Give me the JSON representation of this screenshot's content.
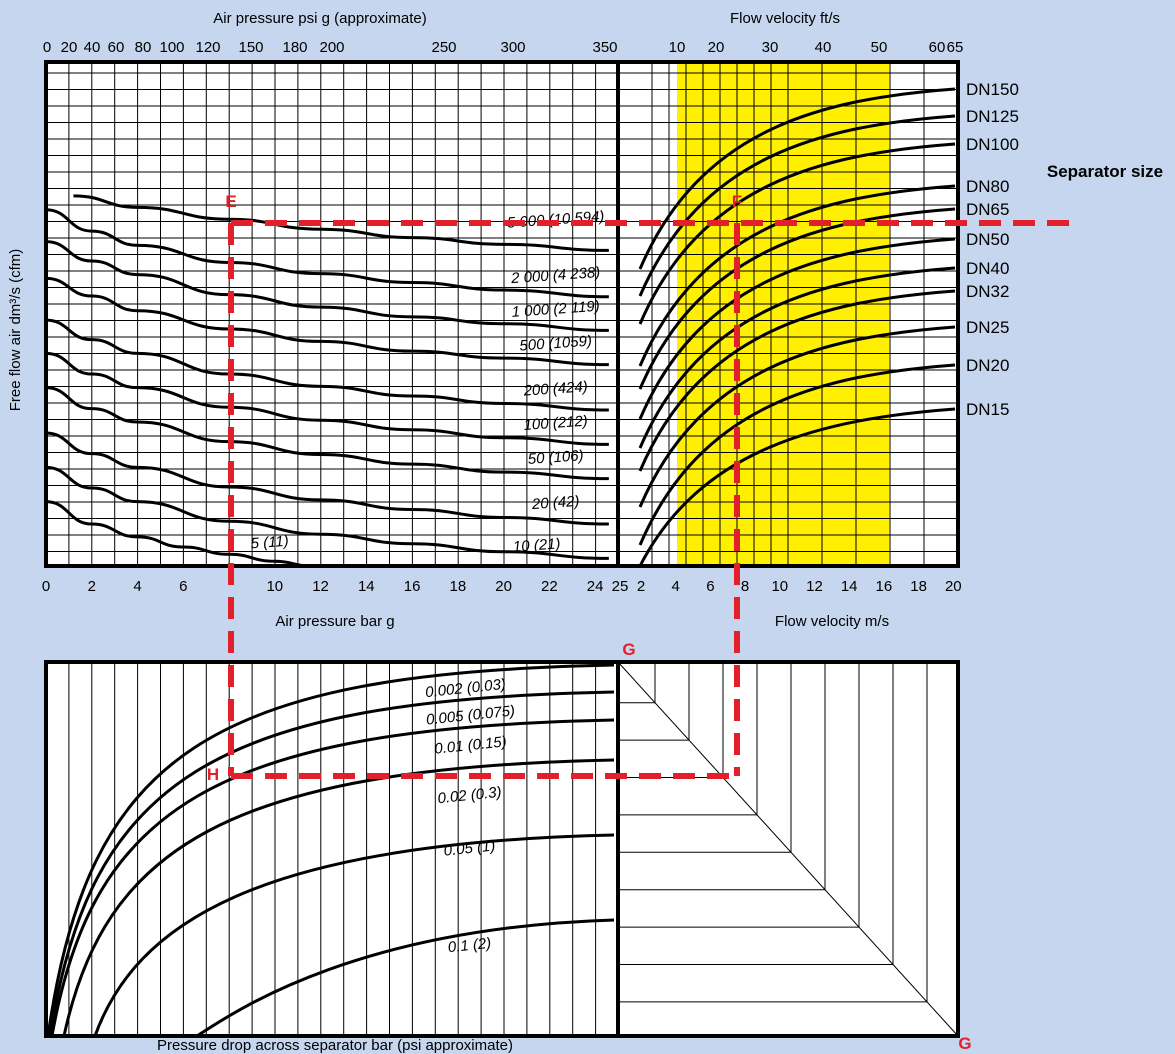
{
  "colors": {
    "background": "#c5d6ee",
    "panel": "#ffffff",
    "highlight": "#ffef00",
    "guide": "#e2202b",
    "line": "#000000"
  },
  "labels": {
    "top_left_axis": "Air pressure psi g (approximate)",
    "top_right_axis": "Flow velocity ft/s",
    "bottom_left_axis": "Air pressure bar g",
    "bottom_right_axis": "Flow velocity m/s",
    "y_axis": "Free flow air dm³/s (cfm)",
    "separator_size": "Separator size",
    "pressure_drop_axis": "Pressure drop across separator bar (psi approximate)",
    "point_E": "E",
    "point_F": "F",
    "point_G_top": "G",
    "point_G_bottom": "G",
    "point_H": "H"
  },
  "chart_data": [
    {
      "type": "line",
      "panel": "pressure vs free air flow",
      "xlabel": "Air pressure bar g",
      "x2label": "Air pressure psi g (approximate)",
      "ylabel": "Free flow air dm³/s (cfm)",
      "xlim": [
        0,
        25
      ],
      "x_ticks": [
        "0",
        "2",
        "4",
        "6",
        "10",
        "12",
        "14",
        "16",
        "18",
        "20",
        "22",
        "24",
        "25"
      ],
      "x2_ticks": [
        "0",
        "20",
        "40",
        "60",
        "80",
        "100",
        "120",
        "150",
        "180",
        "200",
        "250",
        "300",
        "350"
      ],
      "y_scale": "log",
      "grid": true,
      "series": [
        {
          "name": "5 000 (10 594)",
          "x": [
            1.2,
            4,
            8,
            12,
            16,
            20,
            24.6
          ],
          "y": [
            5300,
            4200,
            3300,
            2700,
            2280,
            1990,
            1760
          ]
        },
        {
          "name": "2 000 (4 238)",
          "x": [
            0,
            2,
            4,
            8,
            12,
            16,
            20,
            24.6
          ],
          "y": [
            4000,
            2600,
            1950,
            1380,
            1100,
            920,
            790,
            690
          ]
        },
        {
          "name": "1 000 (2 119)",
          "x": [
            0,
            2,
            4,
            8,
            12,
            16,
            20,
            24.6
          ],
          "y": [
            2100,
            1420,
            1080,
            720,
            560,
            460,
            400,
            350
          ]
        },
        {
          "name": "500 (1059)",
          "x": [
            0,
            2,
            4,
            8,
            12,
            16,
            20,
            24.6
          ],
          "y": [
            1000,
            700,
            520,
            360,
            280,
            230,
            200,
            175
          ]
        },
        {
          "name": "200 (424)",
          "x": [
            0,
            2,
            4,
            8,
            12,
            16,
            20,
            24.6
          ],
          "y": [
            430,
            290,
            220,
            145,
            113,
            93,
            80,
            70
          ]
        },
        {
          "name": "100 (212)",
          "x": [
            0,
            2,
            4,
            8,
            12,
            16,
            20,
            24.6
          ],
          "y": [
            220,
            145,
            110,
            74,
            57,
            47,
            40,
            35
          ]
        },
        {
          "name": "50 (106)",
          "x": [
            0,
            2,
            4,
            8,
            12,
            16,
            20,
            24.6
          ],
          "y": [
            110,
            72,
            55,
            37,
            28.5,
            23.5,
            20,
            17.5
          ]
        },
        {
          "name": "20 (42)",
          "x": [
            0,
            2,
            4,
            8,
            12,
            16,
            20,
            24.6
          ],
          "y": [
            44,
            29,
            22,
            14.8,
            11.4,
            9.4,
            8,
            7
          ]
        },
        {
          "name": "10 (21)",
          "x": [
            0,
            2,
            4,
            8,
            12,
            16,
            20,
            24.6
          ],
          "y": [
            22,
            14.5,
            11,
            7.4,
            5.7,
            4.7,
            4,
            3.5
          ]
        },
        {
          "name": "5 (11)",
          "x": [
            0,
            2,
            4,
            6,
            8,
            10,
            11.6
          ],
          "y": [
            11,
            7,
            5.4,
            4.4,
            3.8,
            3.3,
            3.0
          ]
        }
      ]
    },
    {
      "type": "line",
      "panel": "flow velocity vs separator size",
      "xlabel": "Flow velocity m/s",
      "x2label": "Flow velocity ft/s",
      "xlim": [
        0,
        20
      ],
      "x_ticks": [
        "2",
        "4",
        "6",
        "8",
        "10",
        "12",
        "14",
        "16",
        "18",
        "20"
      ],
      "x2_ticks": [
        "10",
        "20",
        "30",
        "40",
        "50",
        "60",
        "65"
      ],
      "highlight_band": [
        4,
        16
      ],
      "series_labels": [
        "DN150",
        "DN125",
        "DN100",
        "DN80",
        "DN65",
        "DN50",
        "DN40",
        "DN32",
        "DN25",
        "DN20",
        "DN15"
      ]
    },
    {
      "type": "line",
      "panel": "pressure drop across separator",
      "xlabel": "Pressure drop across separator bar (psi approximate)",
      "series_labels": [
        "0.002 (0.03)",
        "0.005 (0.075)",
        "0.01 (0.15)",
        "0.02 (0.3)",
        "0.05 (1)",
        "0.1 (2)"
      ]
    }
  ]
}
